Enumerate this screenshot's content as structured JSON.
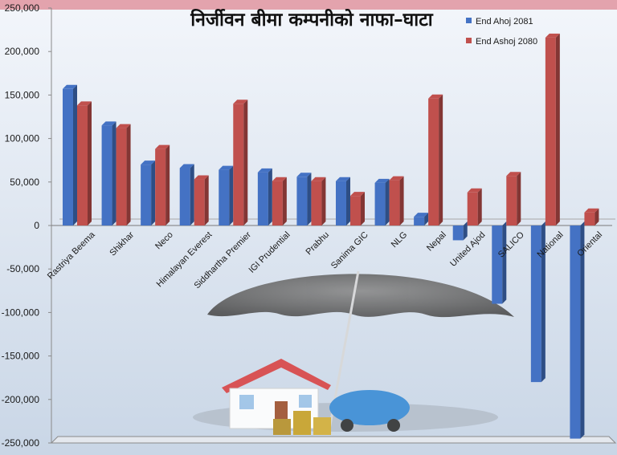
{
  "chart_data": {
    "type": "bar",
    "title": "निर्जीवन बीमा कम्पनीको नाफा–घाटा",
    "xlabel": "",
    "ylabel": "",
    "ylim": [
      -250000,
      250000
    ],
    "yticks": [
      250000,
      200000,
      150000,
      100000,
      50000,
      0,
      -50000,
      -100000,
      -150000,
      -200000,
      -250000
    ],
    "ytick_labels": [
      "250,000",
      "200,000",
      "150,000",
      "100,000",
      "50,000",
      "0",
      "-50,000",
      "-100,000",
      "-150,000",
      "-200,000",
      "-250,000"
    ],
    "legend_position": "top-right",
    "grid": false,
    "categories": [
      "Rastriya Beema",
      "Shikhar",
      "Neco",
      "Himalayan Everest",
      "Siddhartha Premier",
      "IGI Prudential",
      "Prabhu",
      "Sanima GIC",
      "NLG",
      "Nepal",
      "United Ajod",
      "SALICO",
      "National",
      "Oriental"
    ],
    "series": [
      {
        "name": "End Ahoj 2081",
        "color": "#4472c4",
        "values": [
          157000,
          115000,
          70000,
          66000,
          64000,
          61000,
          56000,
          51000,
          49000,
          10000,
          -17000,
          -90000,
          -180000,
          -245000
        ]
      },
      {
        "name": "End Ashoj 2080",
        "color": "#c0504d",
        "values": [
          138000,
          112000,
          88000,
          53000,
          140000,
          51000,
          51000,
          34000,
          52000,
          146000,
          38000,
          57000,
          216000,
          15000
        ]
      }
    ]
  }
}
